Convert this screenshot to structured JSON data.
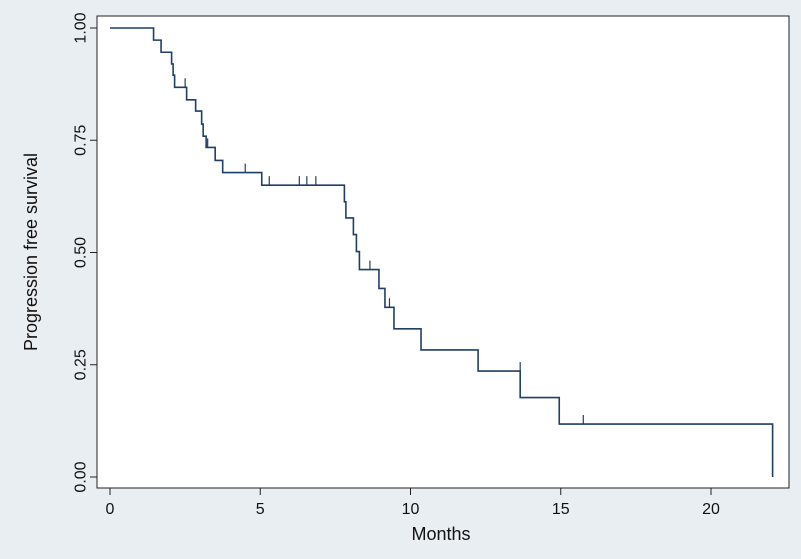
{
  "chart_data": {
    "type": "line",
    "style": "kaplan-meier step function",
    "xlabel": "Months",
    "ylabel": "Progression free survival",
    "xlim": [
      0,
      22.3
    ],
    "ylim": [
      0,
      1
    ],
    "xticks": [
      0,
      5,
      10,
      15,
      20
    ],
    "yticks": [
      0.0,
      0.25,
      0.5,
      0.75,
      1.0
    ],
    "grid": false,
    "colors": {
      "line": "#1f3f68",
      "background": "#e9eef3",
      "plot_area": "#ffffff",
      "axis": "#222222"
    },
    "series": [
      {
        "steps": [
          [
            0,
            1.0
          ],
          [
            1.45,
            0.973
          ],
          [
            1.7,
            0.946
          ],
          [
            2.05,
            0.92
          ],
          [
            2.1,
            0.895
          ],
          [
            2.15,
            0.868
          ],
          [
            2.55,
            0.84
          ],
          [
            2.85,
            0.815
          ],
          [
            3.05,
            0.786
          ],
          [
            3.1,
            0.759
          ],
          [
            3.2,
            0.734
          ],
          [
            3.5,
            0.705
          ],
          [
            3.75,
            0.678
          ],
          [
            5.05,
            0.65
          ],
          [
            7.8,
            0.613
          ],
          [
            7.85,
            0.577
          ],
          [
            8.1,
            0.54
          ],
          [
            8.2,
            0.502
          ],
          [
            8.3,
            0.462
          ],
          [
            8.95,
            0.42
          ],
          [
            9.15,
            0.378
          ],
          [
            9.45,
            0.33
          ],
          [
            10.35,
            0.283
          ],
          [
            12.25,
            0.236
          ],
          [
            13.65,
            0.177
          ],
          [
            14.95,
            0.118
          ],
          [
            22.05,
            0.0
          ]
        ],
        "censored": [
          [
            2.5,
            0.868
          ],
          [
            3.25,
            0.734
          ],
          [
            4.5,
            0.678
          ],
          [
            5.3,
            0.65
          ],
          [
            6.3,
            0.65
          ],
          [
            6.55,
            0.65
          ],
          [
            6.85,
            0.65
          ],
          [
            8.65,
            0.462
          ],
          [
            9.3,
            0.378
          ],
          [
            13.65,
            0.236
          ],
          [
            15.75,
            0.118
          ]
        ]
      }
    ]
  }
}
